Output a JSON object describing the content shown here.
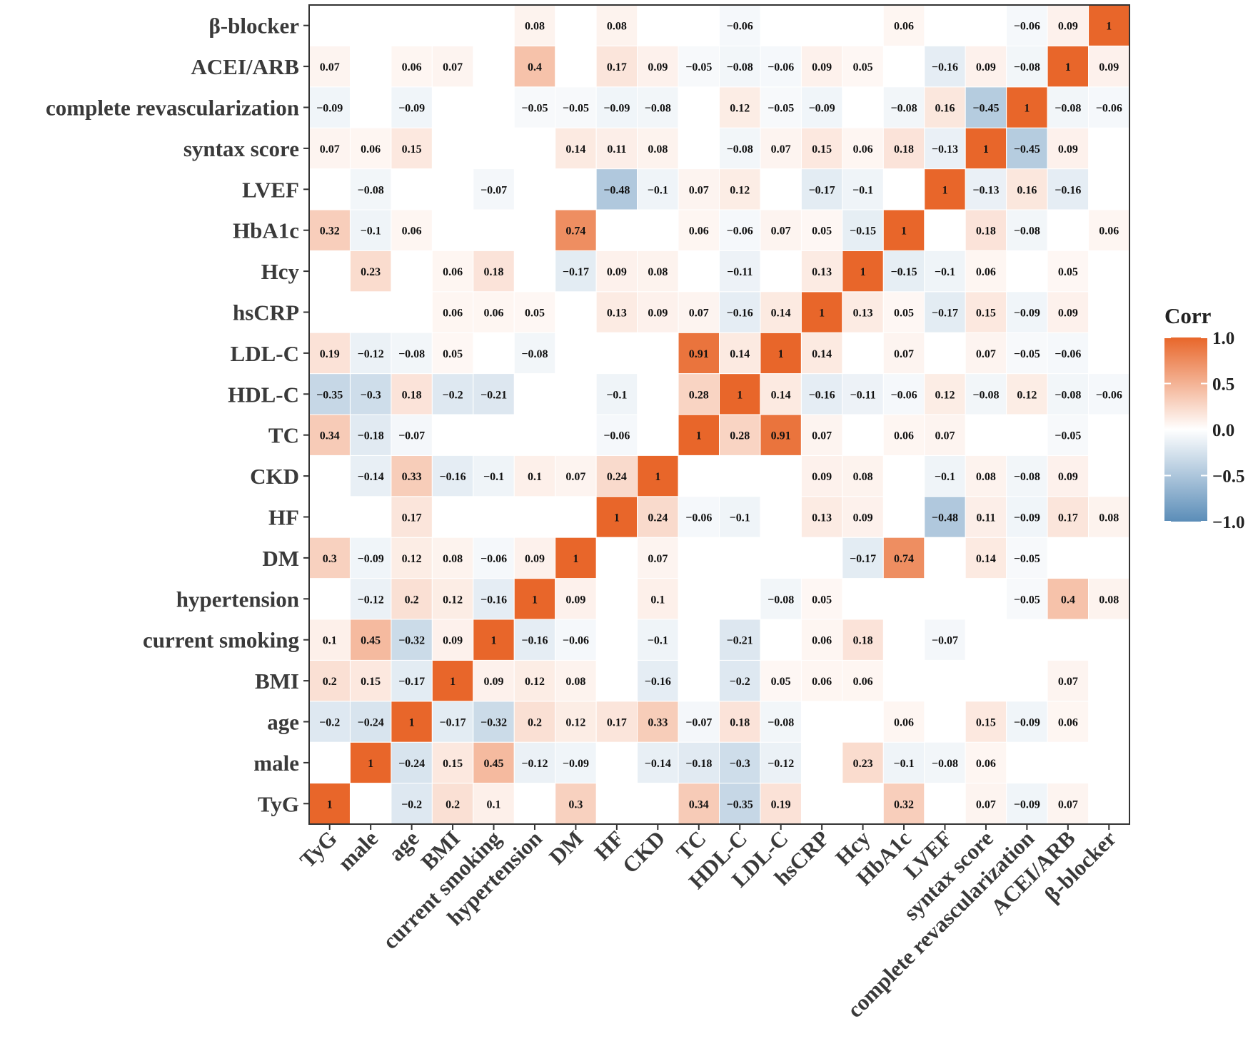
{
  "chart_data": {
    "type": "heatmap",
    "variables": [
      "TyG",
      "male",
      "age",
      "BMI",
      "current smoking",
      "hypertension",
      "DM",
      "HF",
      "CKD",
      "TC",
      "HDL-C",
      "LDL-C",
      "hsCRP",
      "Hcy",
      "HbA1c",
      "LVEF",
      "syntax score",
      "complete revascularization",
      "ACEI/ARB",
      "β-blocker"
    ],
    "matrix": [
      [
        "1",
        "",
        "−0.2",
        "0.2",
        "0.1",
        "",
        "0.3",
        "",
        "",
        "0.34",
        "−0.35",
        "0.19",
        "",
        "",
        "0.32",
        "",
        "0.07",
        "−0.09",
        "0.07",
        ""
      ],
      [
        "",
        "1",
        "−0.24",
        "0.15",
        "0.45",
        "−0.12",
        "−0.09",
        "",
        "−0.14",
        "−0.18",
        "−0.3",
        "−0.12",
        "",
        "0.23",
        "−0.1",
        "−0.08",
        "0.06",
        "",
        "",
        ""
      ],
      [
        "−0.2",
        "−0.24",
        "1",
        "−0.17",
        "−0.32",
        "0.2",
        "0.12",
        "0.17",
        "0.33",
        "−0.07",
        "0.18",
        "−0.08",
        "",
        "",
        "0.06",
        "",
        "0.15",
        "−0.09",
        "0.06",
        ""
      ],
      [
        "0.2",
        "0.15",
        "−0.17",
        "1",
        "0.09",
        "0.12",
        "0.08",
        "",
        "−0.16",
        "",
        "−0.2",
        "0.05",
        "0.06",
        "0.06",
        "",
        "",
        "",
        "",
        "0.07",
        ""
      ],
      [
        "0.1",
        "0.45",
        "−0.32",
        "0.09",
        "1",
        "−0.16",
        "−0.06",
        "",
        "−0.1",
        "",
        "−0.21",
        "",
        "0.06",
        "0.18",
        "",
        "−0.07",
        "",
        "",
        "",
        ""
      ],
      [
        "",
        "−0.12",
        "0.2",
        "0.12",
        "−0.16",
        "1",
        "0.09",
        "",
        "0.1",
        "",
        "",
        "−0.08",
        "0.05",
        "",
        "",
        "",
        "",
        "−0.05",
        "0.4",
        "0.08"
      ],
      [
        "0.3",
        "−0.09",
        "0.12",
        "0.08",
        "−0.06",
        "0.09",
        "1",
        "",
        "0.07",
        "",
        "",
        "",
        "",
        "−0.17",
        "0.74",
        "",
        "0.14",
        "−0.05",
        "",
        ""
      ],
      [
        "",
        "",
        "0.17",
        "",
        "",
        "",
        "",
        "1",
        "0.24",
        "−0.06",
        "−0.1",
        "",
        "0.13",
        "0.09",
        "",
        "−0.48",
        "0.11",
        "−0.09",
        "0.17",
        "0.08"
      ],
      [
        "",
        "−0.14",
        "0.33",
        "−0.16",
        "−0.1",
        "0.1",
        "0.07",
        "0.24",
        "1",
        "",
        "",
        "",
        "0.09",
        "0.08",
        "",
        "−0.1",
        "0.08",
        "−0.08",
        "0.09",
        ""
      ],
      [
        "0.34",
        "−0.18",
        "−0.07",
        "",
        "",
        "",
        "",
        "−0.06",
        "",
        "1",
        "0.28",
        "0.91",
        "0.07",
        "",
        "0.06",
        "0.07",
        "",
        "",
        "−0.05",
        ""
      ],
      [
        "−0.35",
        "−0.3",
        "0.18",
        "−0.2",
        "−0.21",
        "",
        "",
        "−0.1",
        "",
        "0.28",
        "1",
        "0.14",
        "−0.16",
        "−0.11",
        "−0.06",
        "0.12",
        "−0.08",
        "0.12",
        "−0.08",
        "−0.06"
      ],
      [
        "0.19",
        "−0.12",
        "−0.08",
        "0.05",
        "",
        "−0.08",
        "",
        "",
        "",
        "0.91",
        "0.14",
        "1",
        "0.14",
        "",
        "0.07",
        "",
        "0.07",
        "−0.05",
        "−0.06",
        ""
      ],
      [
        "",
        "",
        "",
        "0.06",
        "0.06",
        "0.05",
        "",
        "0.13",
        "0.09",
        "0.07",
        "−0.16",
        "0.14",
        "1",
        "0.13",
        "0.05",
        "−0.17",
        "0.15",
        "−0.09",
        "0.09",
        ""
      ],
      [
        "",
        "0.23",
        "",
        "0.06",
        "0.18",
        "",
        "−0.17",
        "0.09",
        "0.08",
        "",
        "−0.11",
        "",
        "0.13",
        "1",
        "−0.15",
        "−0.1",
        "0.06",
        "",
        "0.05",
        ""
      ],
      [
        "0.32",
        "−0.1",
        "0.06",
        "",
        "",
        "",
        "0.74",
        "",
        "",
        "0.06",
        "−0.06",
        "0.07",
        "0.05",
        "−0.15",
        "1",
        "",
        "0.18",
        "−0.08",
        "",
        "0.06"
      ],
      [
        "",
        "−0.08",
        "",
        "",
        "−0.07",
        "",
        "",
        "−0.48",
        "−0.1",
        "0.07",
        "0.12",
        "",
        "−0.17",
        "−0.1",
        "",
        "1",
        "−0.13",
        "0.16",
        "−0.16",
        ""
      ],
      [
        "0.07",
        "0.06",
        "0.15",
        "",
        "",
        "",
        "0.14",
        "0.11",
        "0.08",
        "",
        "−0.08",
        "0.07",
        "0.15",
        "0.06",
        "0.18",
        "−0.13",
        "1",
        "−0.45",
        "0.09",
        ""
      ],
      [
        "−0.09",
        "",
        "−0.09",
        "",
        "",
        "−0.05",
        "−0.05",
        "−0.09",
        "−0.08",
        "",
        "0.12",
        "−0.05",
        "−0.09",
        "",
        "−0.08",
        "0.16",
        "−0.45",
        "1",
        "−0.08",
        "−0.06"
      ],
      [
        "0.07",
        "",
        "0.06",
        "0.07",
        "",
        "0.4",
        "",
        "0.17",
        "0.09",
        "−0.05",
        "−0.08",
        "−0.06",
        "0.09",
        "0.05",
        "",
        "−0.16",
        "0.09",
        "−0.08",
        "1",
        "0.09"
      ],
      [
        "",
        "",
        "",
        "",
        "",
        "0.08",
        "",
        "0.08",
        "",
        "",
        "−0.06",
        "",
        "",
        "",
        "0.06",
        "",
        "",
        "−0.06",
        "0.09",
        "1"
      ]
    ],
    "colorbar": {
      "title": "Corr",
      "range": [
        -1.0,
        1.0
      ],
      "ticks": [
        "1.0",
        "0.5",
        "0.0",
        "−0.5",
        "−1.0"
      ],
      "tick_values": [
        1.0,
        0.5,
        0.0,
        -0.5,
        -1.0
      ],
      "low_color": "#5b8db8",
      "mid_color": "#ffffff",
      "high_color": "#e8662a"
    },
    "legend_placement": "right"
  }
}
